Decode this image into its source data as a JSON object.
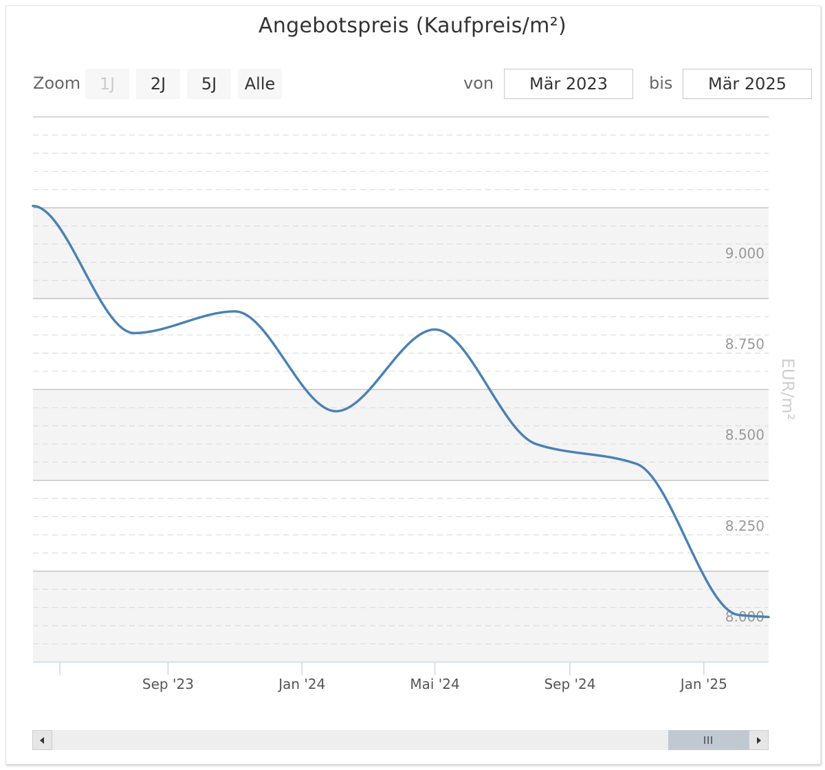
{
  "toolbar": {
    "zoom_label": "Zoom",
    "zoom_buttons": [
      {
        "label": "1J",
        "disabled": true
      },
      {
        "label": "2J",
        "disabled": false
      },
      {
        "label": "5J",
        "disabled": false
      },
      {
        "label": "Alle",
        "disabled": false
      }
    ],
    "from_label": "von",
    "from_value": "Mär 2023",
    "to_label": "bis",
    "to_value": "Mär 2025"
  },
  "colors": {
    "line": "#4a82b4",
    "band": "#f4f4f4",
    "navigator_thumb": "#c0c8d2",
    "navigator_track": "#eeeeee"
  },
  "navigator": {
    "thumb_start": 0.864,
    "thumb_end": 1.0
  },
  "chart_data": {
    "type": "line",
    "title": "Angebotspreis (Kaufpreis/m²)",
    "ylabel": "EUR/m²",
    "xlabel": "",
    "ylim": [
      7875,
      9375
    ],
    "y_ticks": [
      8000,
      8250,
      8500,
      8750,
      9000
    ],
    "y_tick_labels": [
      "8.000",
      "8.250",
      "8.500",
      "8.750",
      "9.000"
    ],
    "xlim": [
      "2023-05-01",
      "2025-03-01"
    ],
    "x_ticks": [
      "2023-09-01",
      "2024-01-01",
      "2024-05-01",
      "2024-09-01",
      "2025-01-01"
    ],
    "x_tick_labels": [
      "Sep '23",
      "Jan '24",
      "Mai '24",
      "Sep '24",
      "Jan '25"
    ],
    "grid": true,
    "legend": "none",
    "series": [
      {
        "values": [
          {
            "x": "2023-05-01",
            "y": 9130
          },
          {
            "x": "2023-08-01",
            "y": 8780
          },
          {
            "x": "2023-11-01",
            "y": 8840
          },
          {
            "x": "2024-02-01",
            "y": 8565
          },
          {
            "x": "2024-05-01",
            "y": 8790
          },
          {
            "x": "2024-08-01",
            "y": 8475
          },
          {
            "x": "2024-11-01",
            "y": 8420
          },
          {
            "x": "2025-02-01",
            "y": 8005
          },
          {
            "x": "2025-03-01",
            "y": 7999
          }
        ]
      }
    ]
  }
}
